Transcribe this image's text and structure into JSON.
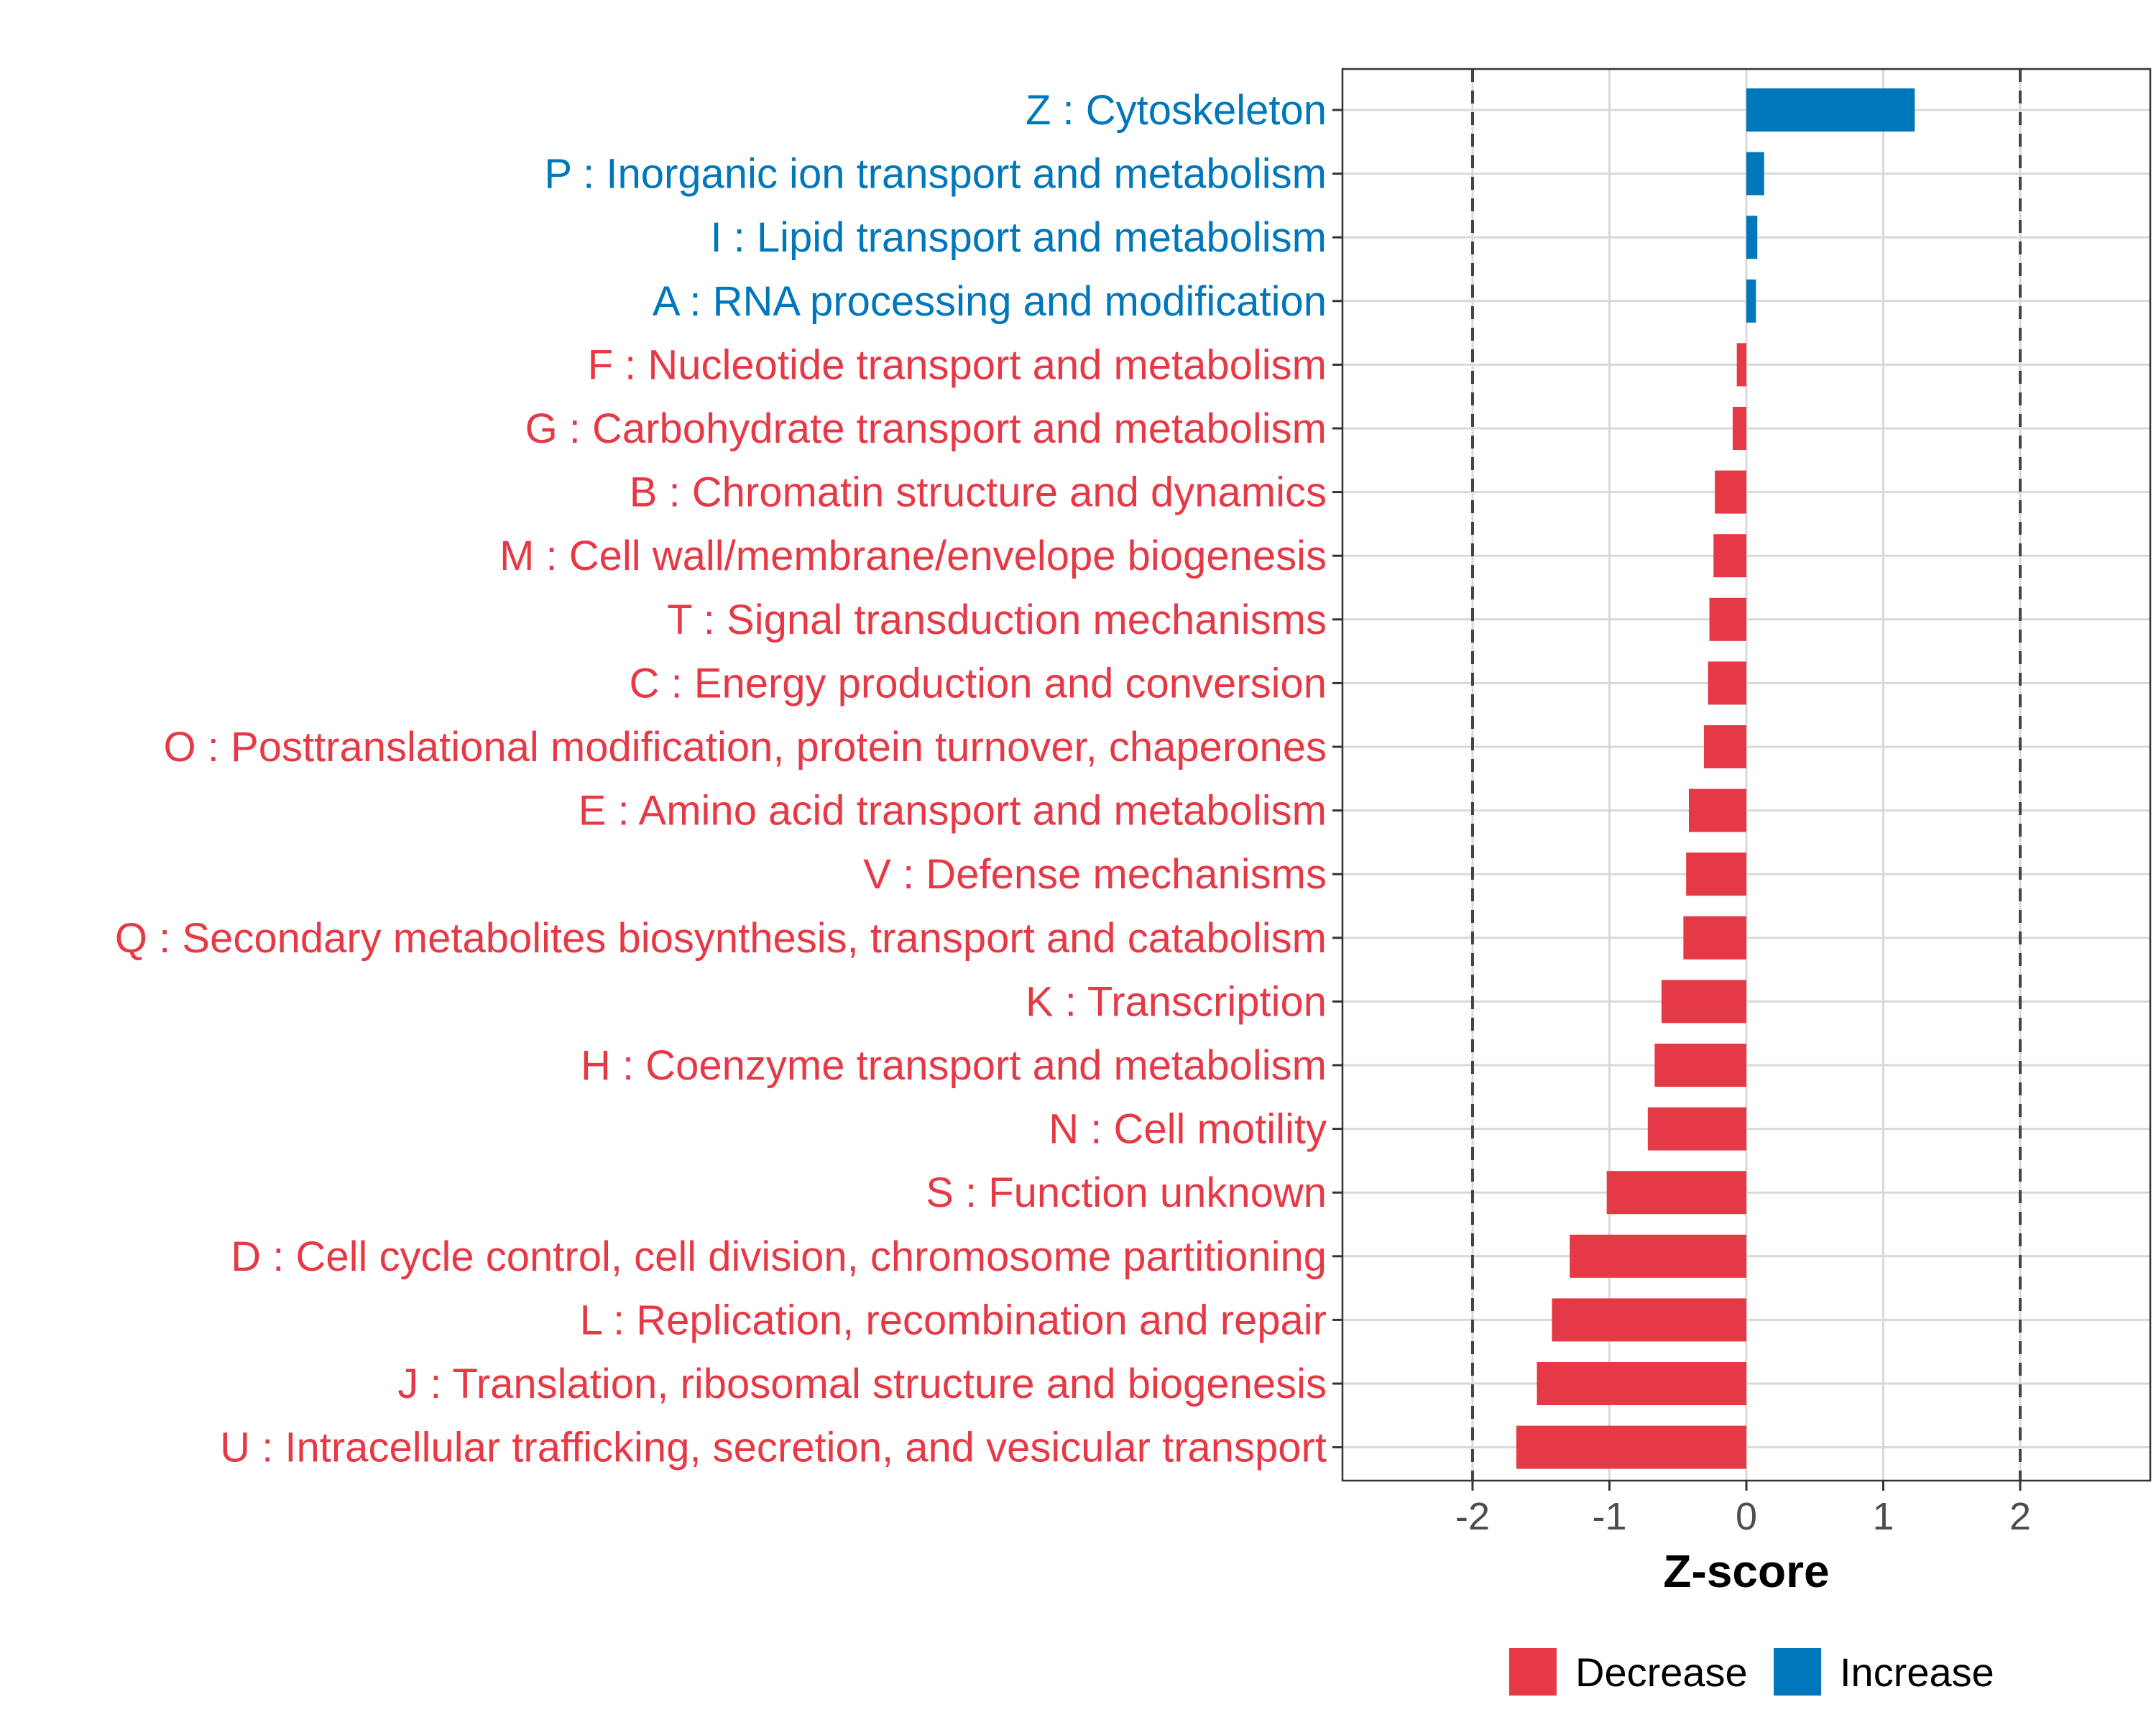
{
  "chart_data": {
    "type": "bar",
    "orientation": "horizontal",
    "title": "",
    "xlabel": "Z-score",
    "ylabel": "",
    "xlim": [
      -2.95,
      2.95
    ],
    "xticks": [
      -2,
      -1,
      0,
      1,
      2
    ],
    "xtick_labels": [
      "-2",
      "-1",
      "0",
      "1",
      "2"
    ],
    "reference_lines": [
      -2,
      2
    ],
    "grid": true,
    "categories": [
      "Z : Cytoskeleton",
      "P : Inorganic ion transport and metabolism",
      "I : Lipid transport and metabolism",
      "A : RNA processing and modification",
      "F : Nucleotide transport and metabolism",
      "G : Carbohydrate transport and metabolism",
      "B : Chromatin structure and dynamics",
      "M : Cell wall/membrane/envelope biogenesis",
      "T : Signal transduction mechanisms",
      "C : Energy production and conversion",
      "O : Posttranslational modification, protein turnover, chaperones",
      "E : Amino acid transport and metabolism",
      "V : Defense mechanisms",
      "Q : Secondary metabolites biosynthesis, transport and catabolism",
      "K : Transcription",
      "H : Coenzyme transport and metabolism",
      "N : Cell motility",
      "S : Function unknown",
      "D : Cell cycle control, cell division, chromosome partitioning",
      "L : Replication, recombination and repair",
      "J : Translation, ribosomal structure and biogenesis",
      "U : Intracellular trafficking, secretion, and vesicular transport"
    ],
    "values": [
      1.23,
      0.13,
      0.08,
      0.07,
      -0.07,
      -0.1,
      -0.23,
      -0.24,
      -0.27,
      -0.28,
      -0.31,
      -0.42,
      -0.44,
      -0.46,
      -0.62,
      -0.67,
      -0.72,
      -1.02,
      -1.29,
      -1.42,
      -1.53,
      -1.68
    ],
    "groups": [
      "Increase",
      "Increase",
      "Increase",
      "Increase",
      "Decrease",
      "Decrease",
      "Decrease",
      "Decrease",
      "Decrease",
      "Decrease",
      "Decrease",
      "Decrease",
      "Decrease",
      "Decrease",
      "Decrease",
      "Decrease",
      "Decrease",
      "Decrease",
      "Decrease",
      "Decrease",
      "Decrease",
      "Decrease"
    ],
    "legend": {
      "position": "bottom",
      "entries": [
        {
          "label": "Decrease",
          "color": "#e63946"
        },
        {
          "label": "Increase",
          "color": "#0077bb"
        }
      ]
    },
    "colors": {
      "Decrease": "#e63946",
      "Increase": "#0077bb"
    }
  }
}
